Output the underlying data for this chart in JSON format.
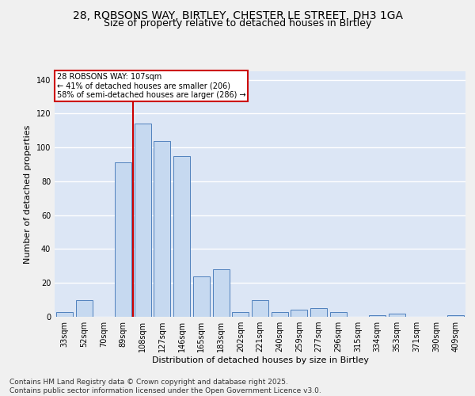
{
  "title_line1": "28, ROBSONS WAY, BIRTLEY, CHESTER LE STREET, DH3 1GA",
  "title_line2": "Size of property relative to detached houses in Birtley",
  "xlabel": "Distribution of detached houses by size in Birtley",
  "ylabel": "Number of detached properties",
  "categories": [
    "33sqm",
    "52sqm",
    "70sqm",
    "89sqm",
    "108sqm",
    "127sqm",
    "146sqm",
    "165sqm",
    "183sqm",
    "202sqm",
    "221sqm",
    "240sqm",
    "259sqm",
    "277sqm",
    "296sqm",
    "315sqm",
    "334sqm",
    "353sqm",
    "371sqm",
    "390sqm",
    "409sqm"
  ],
  "values": [
    3,
    10,
    0,
    91,
    114,
    104,
    95,
    24,
    28,
    3,
    10,
    3,
    4,
    5,
    3,
    0,
    1,
    2,
    0,
    0,
    1
  ],
  "bar_color": "#c6d9f0",
  "bar_edge_color": "#4f81bd",
  "property_label": "28 ROBSONS WAY: 107sqm",
  "annotation_line1": "← 41% of detached houses are smaller (206)",
  "annotation_line2": "58% of semi-detached houses are larger (286) →",
  "vline_color": "#cc0000",
  "vline_x": 3.5,
  "annotation_box_color": "#ffffff",
  "annotation_box_edge_color": "#cc0000",
  "ylim": [
    0,
    145
  ],
  "yticks": [
    0,
    20,
    40,
    60,
    80,
    100,
    120,
    140
  ],
  "background_color": "#dce6f5",
  "grid_color": "#ffffff",
  "footer_line1": "Contains HM Land Registry data © Crown copyright and database right 2025.",
  "footer_line2": "Contains public sector information licensed under the Open Government Licence v3.0.",
  "title_fontsize": 10,
  "subtitle_fontsize": 9,
  "axis_label_fontsize": 8,
  "tick_fontsize": 7,
  "footer_fontsize": 6.5
}
